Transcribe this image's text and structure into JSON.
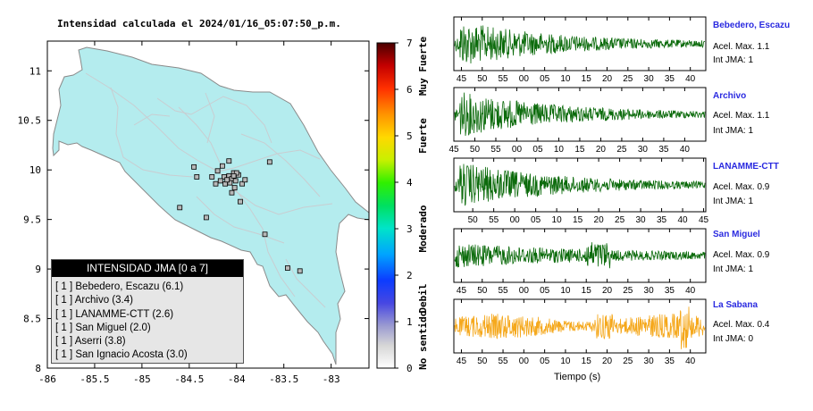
{
  "map": {
    "title": "Intensidad calculada el 2024/01/16_05:07:50_p.m.",
    "colors": {
      "land": "#b4ecee",
      "land_border": "#8a8a8a",
      "roads": "#cfd3d6",
      "station_fill": "#b8b8b8"
    }
  },
  "legend": {
    "title": "INTENSIDAD JMA [0 a 7]",
    "items": [
      {
        "level": "[ 1 ]",
        "name": "Bebedero, Escazu (6.1)"
      },
      {
        "level": "[ 1 ]",
        "name": "Archivo (3.4)"
      },
      {
        "level": "[ 1 ]",
        "name": "LANAMME-CTT (2.6)"
      },
      {
        "level": "[ 1 ]",
        "name": "San Miguel (2.0)"
      },
      {
        "level": "[ 1 ]",
        "name": "Aserri (3.8)"
      },
      {
        "level": "[ 1 ]",
        "name": "San Ignacio Acosta (3.0)"
      }
    ]
  },
  "colorbar": {
    "ticks": [
      "0",
      "1",
      "2",
      "3",
      "4",
      "5",
      "6",
      "7"
    ],
    "categories": [
      "No sentido",
      "Debil",
      "Moderado",
      "Fuerte",
      "Muy Fuerte"
    ]
  },
  "traces": [
    {
      "name": "Bebedero, Escazu",
      "acc": "Acel. Max. 1.1",
      "int": "Int JMA: 1",
      "color": "#0c6b0c"
    },
    {
      "name": "Archivo",
      "acc": "Acel. Max. 1.1",
      "int": "Int JMA: 1",
      "color": "#0c6b0c"
    },
    {
      "name": "LANAMME-CTT",
      "acc": "Acel. Max. 0.9",
      "int": "Int JMA: 1",
      "color": "#0c6b0c"
    },
    {
      "name": "San Miguel",
      "acc": "Acel. Max. 0.9",
      "int": "Int JMA: 1",
      "color": "#0c6b0c"
    },
    {
      "name": "La Sabana",
      "acc": "Acel. Max. 0.4",
      "int": "Int JMA: 0",
      "color": "#f5a81c"
    }
  ],
  "time_label": "Tiempo (s)",
  "chart_data": [
    {
      "type": "scatter",
      "title": "Intensidad calculada el 2024/01/16_05:07:50_p.m.",
      "xlim": [
        -86,
        -82.6
      ],
      "ylim": [
        8,
        11.3
      ],
      "x_ticks": [
        "-86",
        "-85.5",
        "-85",
        "-84.5",
        "-84",
        "-83.5",
        "-83"
      ],
      "y_ticks": [
        "8",
        "8.5",
        "9",
        "9.5",
        "10",
        "10.5",
        "11"
      ],
      "stations": [
        {
          "lon": -84.13,
          "lat": 9.93
        },
        {
          "lon": -84.08,
          "lat": 9.94
        },
        {
          "lon": -84.05,
          "lat": 9.91
        },
        {
          "lon": -84.12,
          "lat": 9.86
        },
        {
          "lon": -84.07,
          "lat": 9.87
        },
        {
          "lon": -84.03,
          "lat": 9.97
        },
        {
          "lon": -83.98,
          "lat": 9.95
        },
        {
          "lon": -84.01,
          "lat": 9.89
        },
        {
          "lon": -83.94,
          "lat": 9.86
        },
        {
          "lon": -84.2,
          "lat": 9.99
        },
        {
          "lon": -84.26,
          "lat": 9.93
        },
        {
          "lon": -84.15,
          "lat": 10.04
        },
        {
          "lon": -84.45,
          "lat": 10.03
        },
        {
          "lon": -84.42,
          "lat": 9.93
        },
        {
          "lon": -84.08,
          "lat": 10.09
        },
        {
          "lon": -83.91,
          "lat": 9.9
        },
        {
          "lon": -84.02,
          "lat": 9.82
        },
        {
          "lon": -84.05,
          "lat": 9.77
        },
        {
          "lon": -83.96,
          "lat": 9.68
        },
        {
          "lon": -84.32,
          "lat": 9.52
        },
        {
          "lon": -84.6,
          "lat": 9.62
        },
        {
          "lon": -83.65,
          "lat": 10.08
        },
        {
          "lon": -83.7,
          "lat": 9.35
        },
        {
          "lon": -83.46,
          "lat": 9.01
        },
        {
          "lon": -83.33,
          "lat": 8.98
        },
        {
          "lon": -84.0,
          "lat": 9.97
        },
        {
          "lon": -84.1,
          "lat": 9.9
        },
        {
          "lon": -84.17,
          "lat": 9.89
        },
        {
          "lon": -84.22,
          "lat": 9.86
        },
        {
          "lon": -84.03,
          "lat": 9.94
        }
      ]
    },
    {
      "type": "line",
      "xlabel": "Tiempo (s)",
      "x_ticks": [
        "45",
        "50",
        "55",
        "00",
        "05",
        "10",
        "15",
        "20",
        "25",
        "30",
        "35",
        "40"
      ],
      "series_names": [
        "Bebedero, Escazu",
        "Archivo",
        "LANAMME-CTT",
        "San Miguel",
        "La Sabana"
      ]
    }
  ]
}
